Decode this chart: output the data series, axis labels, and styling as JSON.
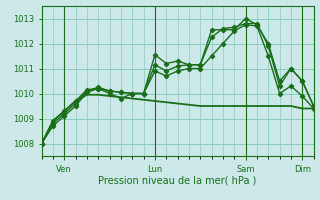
{
  "title": "Pression niveau de la mer( hPa )",
  "bg_color": "#cce8e8",
  "grid_color": "#88ccbb",
  "line_color": "#1a6e1a",
  "ylim": [
    1007.5,
    1013.5
  ],
  "yticks": [
    1008,
    1009,
    1010,
    1011,
    1012,
    1013
  ],
  "xtick_labels": [
    "Ven",
    "Lun",
    "Sam",
    "Dim"
  ],
  "xtick_positions": [
    2,
    10,
    18,
    23
  ],
  "vline_positions": [
    2,
    10,
    18,
    23
  ],
  "num_points": 25,
  "series": [
    [
      1008.0,
      1008.7,
      1009.1,
      1009.5,
      1010.05,
      1010.2,
      1010.0,
      1009.8,
      1010.0,
      1010.0,
      1011.55,
      1011.2,
      1011.3,
      1011.15,
      1011.15,
      1012.55,
      1012.55,
      1012.55,
      1013.0,
      1012.75,
      1012.0,
      1010.5,
      1011.0,
      1010.5,
      1009.5
    ],
    [
      1008.0,
      1008.8,
      1009.2,
      1009.6,
      1010.1,
      1010.25,
      1010.1,
      1010.05,
      1010.0,
      1010.0,
      1011.15,
      1010.9,
      1011.1,
      1011.15,
      1011.15,
      1012.25,
      1012.6,
      1012.65,
      1012.8,
      1012.8,
      1011.9,
      1010.3,
      1011.0,
      1010.5,
      1009.5
    ],
    [
      1008.0,
      1008.9,
      1009.3,
      1009.7,
      1010.15,
      1010.2,
      1010.1,
      1010.05,
      1010.0,
      1010.0,
      1010.9,
      1010.7,
      1010.9,
      1011.0,
      1011.0,
      1011.5,
      1012.0,
      1012.5,
      1012.75,
      1012.7,
      1011.5,
      1010.0,
      1010.3,
      1009.9,
      1009.4
    ],
    [
      1008.0,
      1008.9,
      1009.3,
      1009.7,
      1009.95,
      1009.95,
      1009.9,
      1009.85,
      1009.8,
      1009.75,
      1009.7,
      1009.65,
      1009.6,
      1009.55,
      1009.5,
      1009.5,
      1009.5,
      1009.5,
      1009.5,
      1009.5,
      1009.5,
      1009.5,
      1009.5,
      1009.4,
      1009.4
    ]
  ]
}
